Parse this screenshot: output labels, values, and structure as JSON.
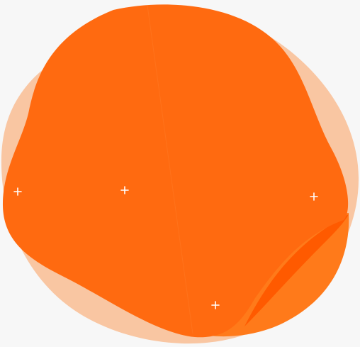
{
  "canvas": {
    "background": "#f7f7f7"
  },
  "colors": {
    "peach_blob": "#f9c6a2",
    "main_blob": "#ff6a10",
    "main_blob_shadow": "#ff5f05",
    "tail_fold": "#ff7a1a",
    "tail_fold_dark": "#ff5a00",
    "marker": "#ffffff"
  },
  "icons": {
    "marker": "plus-marker-icon"
  },
  "markers": [
    {
      "name": "marker-left",
      "icon": "plus"
    },
    {
      "name": "marker-center-left",
      "icon": "plus"
    },
    {
      "name": "marker-right",
      "icon": "plus"
    },
    {
      "name": "marker-bottom",
      "icon": "plus"
    }
  ]
}
